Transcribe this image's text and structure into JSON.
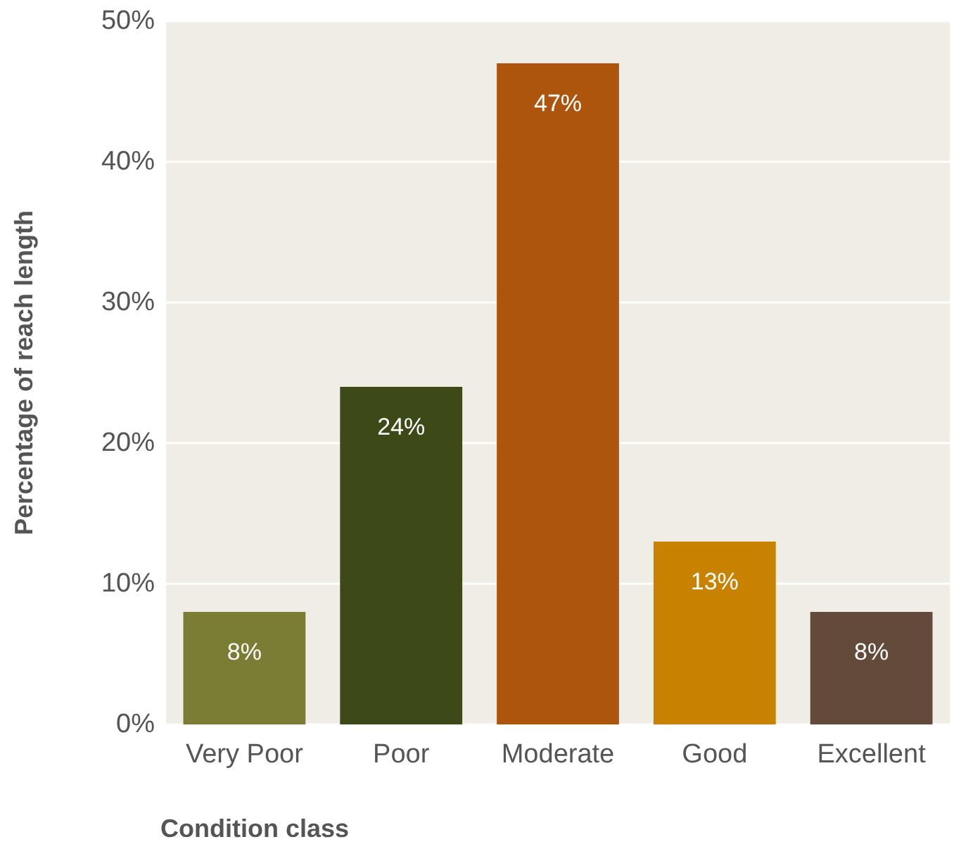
{
  "chart_data": {
    "type": "bar",
    "xlabel": "Condition class",
    "ylabel": "Percentage of reach length",
    "categories": [
      "Very Poor",
      "Poor",
      "Moderate",
      "Good",
      "Excellent"
    ],
    "values": [
      8,
      24,
      47,
      13,
      8
    ],
    "colors": [
      "#7b7d34",
      "#3d4a17",
      "#ad550c",
      "#c98200",
      "#634a3a"
    ],
    "value_labels": [
      "8%",
      "24%",
      "47%",
      "13%",
      "8%"
    ],
    "ylim": [
      0,
      50
    ],
    "yticks": [
      {
        "value": 0,
        "label": "0%"
      },
      {
        "value": 10,
        "label": "10%"
      },
      {
        "value": 20,
        "label": "20%"
      },
      {
        "value": 30,
        "label": "30%"
      },
      {
        "value": 40,
        "label": "40%"
      },
      {
        "value": 50,
        "label": "50%"
      }
    ],
    "grid": "y"
  }
}
